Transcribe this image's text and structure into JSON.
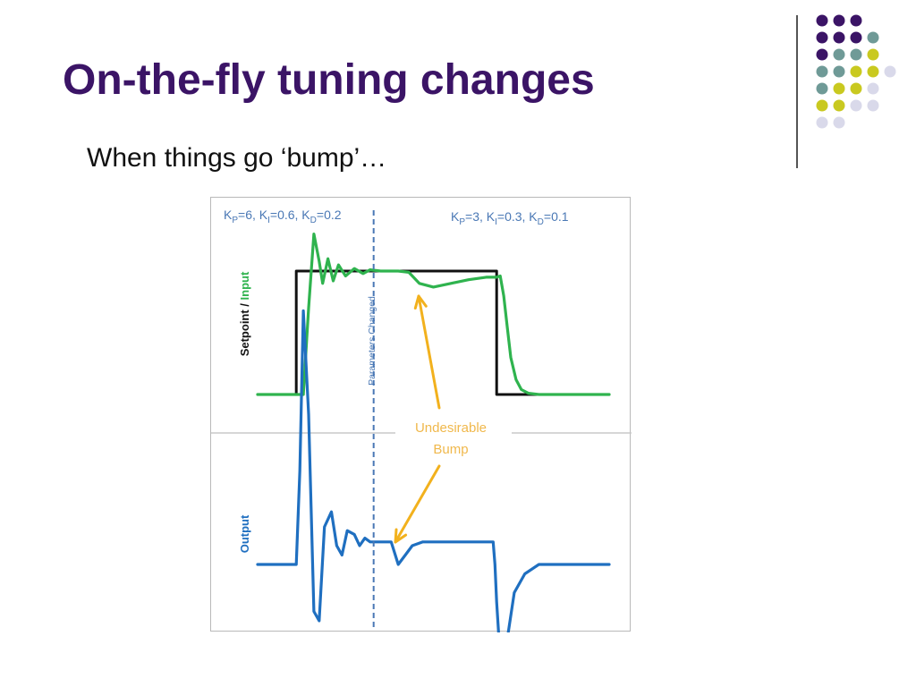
{
  "slide": {
    "title": "On-the-fly tuning changes",
    "subtitle": "When things go ‘bump’…"
  },
  "decoration": {
    "dot_colors": {
      "purple": "#3b1466",
      "teal": "#6f9a97",
      "yellow": "#c9c920",
      "lavender": "#d9d9ea"
    },
    "dot_rows": [
      [
        "purple",
        "purple",
        "purple"
      ],
      [
        "purple",
        "purple",
        "purple",
        "teal"
      ],
      [
        "purple",
        "teal",
        "teal",
        "yellow"
      ],
      [
        "teal",
        "teal",
        "yellow",
        "yellow",
        "lavender"
      ],
      [
        "teal",
        "yellow",
        "yellow",
        "lavender"
      ],
      [
        "yellow",
        "yellow",
        "lavender",
        "lavender"
      ],
      [
        "lavender",
        "lavender"
      ]
    ]
  },
  "chart_data": {
    "type": "line",
    "colors": {
      "setpoint": "#111111",
      "input": "#2fb34e",
      "output": "#1f6fc0",
      "divider": "#4a78b5",
      "annotation": "#f2b11d",
      "annotation_text": "#f0b84c",
      "gain_text": "#4a78b5"
    },
    "annotations": {
      "params_before": "Kₚ=6, Kᵢ=0.6, K_D=0.2",
      "params_after": "Kₚ=3, Kᵢ=0.3, K_D=0.1",
      "change_marker": "Parameters Changed",
      "bump_label_line1": "Undesirable",
      "bump_label_line2": "Bump"
    },
    "panels": [
      {
        "name": "top",
        "ylabel_part1": "Setpoint / ",
        "ylabel_part2": "Input",
        "ylim": [
          0,
          1.5
        ],
        "series": [
          {
            "name": "Setpoint",
            "color_key": "setpoint",
            "x": [
              0,
              11,
              11,
              68,
              68,
              100
            ],
            "y": [
              0,
              0,
              1,
              1,
              0,
              0
            ]
          },
          {
            "name": "Input",
            "color_key": "input",
            "x": [
              0,
              13,
              14.5,
              16,
              17.5,
              18.5,
              20,
              21.5,
              23,
              25,
              27.5,
              30,
              32,
              35,
              38,
              40,
              43,
              46,
              50,
              55,
              60,
              65,
              68,
              69,
              70,
              71,
              72,
              73.5,
              75,
              77,
              80,
              85,
              100
            ],
            "y": [
              0,
              0,
              0.7,
              1.3,
              1.08,
              0.9,
              1.1,
              0.92,
              1.05,
              0.96,
              1.02,
              0.98,
              1.01,
              1.0,
              1.0,
              1.0,
              0.99,
              0.9,
              0.87,
              0.9,
              0.93,
              0.95,
              0.95,
              0.96,
              0.8,
              0.55,
              0.3,
              0.12,
              0.04,
              0.01,
              0,
              0,
              0
            ]
          }
        ]
      },
      {
        "name": "bottom",
        "ylabel": "Output",
        "ylim": [
          -0.8,
          1.5
        ],
        "series": [
          {
            "name": "Output",
            "color_key": "output",
            "x": [
              0,
              11,
              12,
              13,
              14.5,
              16,
              17.5,
              19,
              21,
              22.5,
              24,
              25.5,
              27.5,
              29,
              30.5,
              32,
              34,
              36,
              38,
              40,
              42,
              44,
              47,
              50,
              55,
              60,
              67,
              67.5,
              68,
              69,
              70,
              71,
              73,
              76,
              80,
              85,
              100
            ],
            "y": [
              0,
              0,
              0.5,
              1.35,
              0.8,
              -0.25,
              -0.3,
              0.2,
              0.28,
              0.1,
              0.05,
              0.18,
              0.16,
              0.1,
              0.14,
              0.12,
              0.12,
              0.12,
              0.12,
              0.0,
              0.05,
              0.1,
              0.12,
              0.12,
              0.12,
              0.12,
              0.12,
              0.0,
              -0.2,
              -0.5,
              -0.6,
              -0.4,
              -0.15,
              -0.05,
              0,
              0,
              0
            ]
          }
        ]
      }
    ],
    "x_range": [
      0,
      100
    ],
    "change_at_x": 33,
    "bump_x": 40
  }
}
